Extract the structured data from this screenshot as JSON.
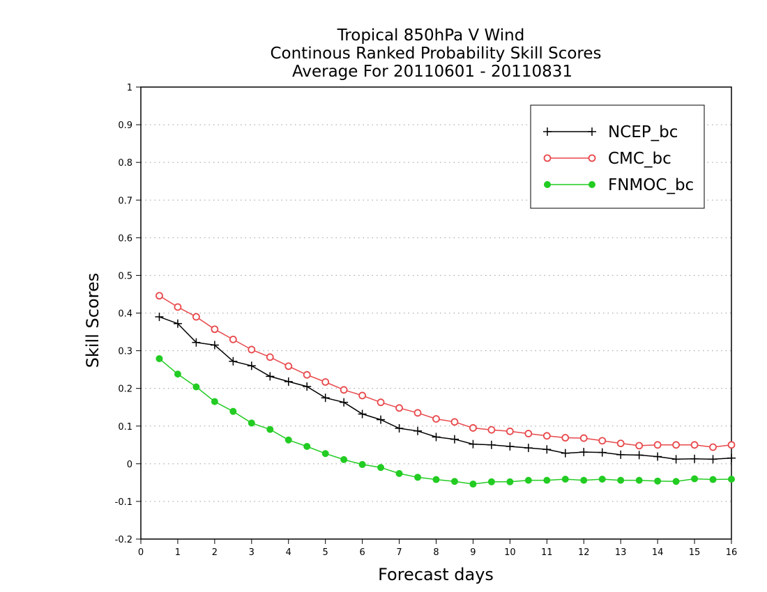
{
  "chart_data": {
    "type": "line",
    "title": [
      "Tropical 850hPa V Wind",
      "Continous Ranked Probability Skill Scores",
      "Average For 20110601 - 20110831"
    ],
    "xlabel": "Forecast days",
    "ylabel": "Skill Scores",
    "xlim": [
      0,
      16
    ],
    "ylim": [
      -0.2,
      1
    ],
    "x_ticks": [
      0,
      1,
      2,
      3,
      4,
      5,
      6,
      7,
      8,
      9,
      10,
      11,
      12,
      13,
      14,
      15,
      16
    ],
    "y_ticks": [
      -0.2,
      -0.1,
      0,
      0.1,
      0.2,
      0.3,
      0.4,
      0.5,
      0.6,
      0.7,
      0.8,
      0.9,
      1
    ],
    "y_tick_labels": [
      "-0.2",
      "-0.1",
      "0",
      "0.1",
      "0.2",
      "0.3",
      "0.4",
      "0.5",
      "0.6",
      "0.7",
      "0.8",
      "0.9",
      "1"
    ],
    "grid": "horizontal dotted",
    "legend_position": "top-right",
    "x": [
      0.5,
      1,
      1.5,
      2,
      2.5,
      3,
      3.5,
      4,
      4.5,
      5,
      5.5,
      6,
      6.5,
      7,
      7.5,
      8,
      8.5,
      9,
      9.5,
      10,
      10.5,
      11,
      11.5,
      12,
      12.5,
      13,
      13.5,
      14,
      14.5,
      15,
      15.5,
      16
    ],
    "series": [
      {
        "name": "NCEP_bc",
        "color": "#000000",
        "marker": "plus",
        "values": [
          0.39,
          0.372,
          0.322,
          0.315,
          0.272,
          0.26,
          0.232,
          0.218,
          0.205,
          0.175,
          0.163,
          0.132,
          0.117,
          0.094,
          0.087,
          0.071,
          0.065,
          0.052,
          0.05,
          0.046,
          0.042,
          0.038,
          0.028,
          0.031,
          0.03,
          0.024,
          0.023,
          0.019,
          0.012,
          0.013,
          0.012,
          0.015
        ]
      },
      {
        "name": "CMC_bc",
        "color": "#e8474a",
        "marker": "open-circle",
        "values": [
          0.446,
          0.416,
          0.39,
          0.357,
          0.33,
          0.303,
          0.283,
          0.259,
          0.236,
          0.217,
          0.196,
          0.181,
          0.163,
          0.148,
          0.135,
          0.119,
          0.111,
          0.095,
          0.09,
          0.086,
          0.08,
          0.074,
          0.069,
          0.068,
          0.061,
          0.054,
          0.048,
          0.05,
          0.05,
          0.05,
          0.044,
          0.05
        ]
      },
      {
        "name": "FNMOC_bc",
        "color": "#22cc22",
        "marker": "filled-circle",
        "values": [
          0.279,
          0.238,
          0.204,
          0.165,
          0.139,
          0.108,
          0.091,
          0.063,
          0.046,
          0.027,
          0.011,
          -0.002,
          -0.01,
          -0.026,
          -0.036,
          -0.042,
          -0.047,
          -0.054,
          -0.048,
          -0.048,
          -0.044,
          -0.044,
          -0.041,
          -0.044,
          -0.041,
          -0.044,
          -0.044,
          -0.046,
          -0.047,
          -0.04,
          -0.042,
          -0.041
        ]
      }
    ]
  }
}
